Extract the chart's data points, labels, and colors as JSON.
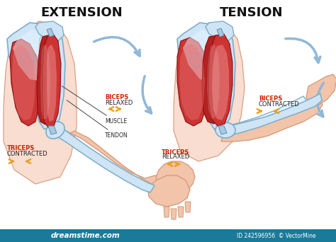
{
  "title_left": "EXTENSION",
  "title_right": "TENSION",
  "bg_color": "#ffffff",
  "title_fontsize": 13,
  "title_font_weight": "bold",
  "skin_color": "#f2c4aa",
  "skin_outline": "#d49878",
  "skin_light": "#f8ddd0",
  "bone_color": "#cfe4f5",
  "bone_outline": "#7aaec8",
  "bone_light": "#e8f4ff",
  "muscle_dark": "#b52020",
  "muscle_mid": "#cc3333",
  "muscle_light": "#e87777",
  "muscle_highlight": "#f5aaaa",
  "tendon_color": "#a8c8e0",
  "tendon_outline": "#6090b0",
  "label_red": "#cc2200",
  "label_black": "#222222",
  "arrow_yellow": "#e8a020",
  "arrow_blue": "#90b8d8",
  "bottom_color": "#1a7a9a",
  "watermark": "dreamstime.com",
  "id_text": "ID 242596956  © VectorMine",
  "left_biceps": "BICEPS",
  "left_biceps_state": "RELAXED",
  "left_triceps": "TRICEPS",
  "left_triceps_state": "CONTRACTED",
  "label_muscle": "MUSCLE",
  "label_tendon": "TENDON",
  "right_biceps": "BICEPS",
  "right_biceps_state": "CONTRACTED",
  "right_triceps": "TRICEPS",
  "right_triceps_state": "RELAXED"
}
